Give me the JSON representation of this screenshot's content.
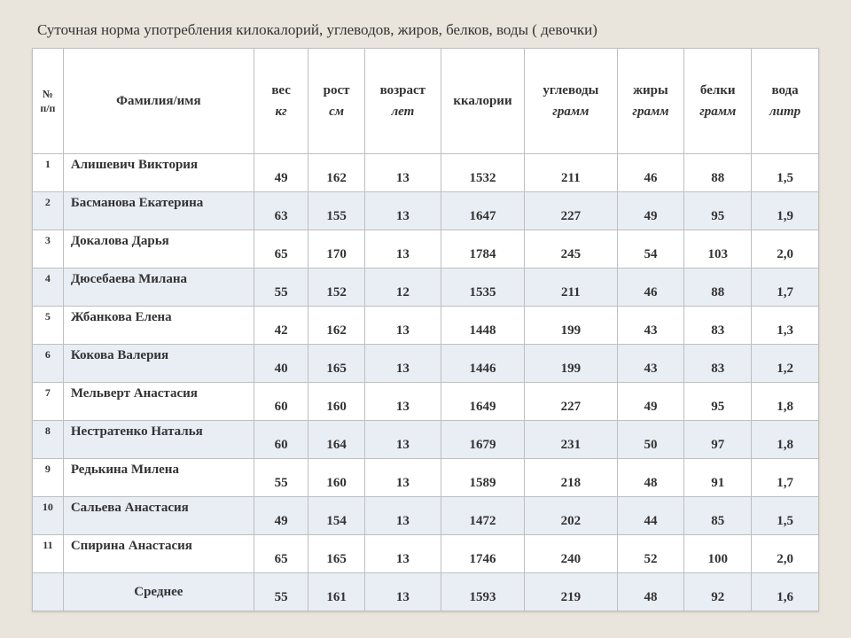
{
  "title": "Суточная норма употребления килокалорий, углеводов, жиров, белков, воды ( девочки)",
  "table": {
    "type": "table",
    "colors": {
      "page_bg": "#e9e5dc",
      "row_even_bg": "#e9edf4",
      "row_odd_bg": "#ffffff",
      "border": "#bfbfbf",
      "text": "#333333"
    },
    "columns": [
      {
        "key": "num",
        "label": "№ п/п",
        "unit": ""
      },
      {
        "key": "name",
        "label": "Фамилия/имя",
        "unit": ""
      },
      {
        "key": "weight",
        "label": "вес",
        "unit": "кг"
      },
      {
        "key": "height",
        "label": "рост",
        "unit": "см"
      },
      {
        "key": "age",
        "label": "возраст",
        "unit": "лет"
      },
      {
        "key": "kcal",
        "label": "ккалории",
        "unit": ""
      },
      {
        "key": "carb",
        "label": "углеводы",
        "unit": "грамм"
      },
      {
        "key": "fat",
        "label": "жиры",
        "unit": "грамм"
      },
      {
        "key": "prot",
        "label": "белки",
        "unit": "грамм"
      },
      {
        "key": "water",
        "label": "вода",
        "unit": "литр"
      }
    ],
    "rows": [
      {
        "num": "1",
        "name": "Алишевич Виктория",
        "weight": "49",
        "height": "162",
        "age": "13",
        "kcal": "1532",
        "carb": "211",
        "fat": "46",
        "prot": "88",
        "water": "1,5"
      },
      {
        "num": "2",
        "name": "Басманова Екатерина",
        "weight": "63",
        "height": "155",
        "age": "13",
        "kcal": "1647",
        "carb": "227",
        "fat": "49",
        "prot": "95",
        "water": "1,9"
      },
      {
        "num": "3",
        "name": "Докалова Дарья",
        "weight": "65",
        "height": "170",
        "age": "13",
        "kcal": "1784",
        "carb": "245",
        "fat": "54",
        "prot": "103",
        "water": "2,0"
      },
      {
        "num": "4",
        "name": "Дюсебаева Милана",
        "weight": "55",
        "height": "152",
        "age": "12",
        "kcal": "1535",
        "carb": "211",
        "fat": "46",
        "prot": "88",
        "water": "1,7"
      },
      {
        "num": "5",
        "name": "Жбанкова Елена",
        "weight": "42",
        "height": "162",
        "age": "13",
        "kcal": "1448",
        "carb": "199",
        "fat": "43",
        "prot": "83",
        "water": "1,3"
      },
      {
        "num": "6",
        "name": "Кокова Валерия",
        "weight": "40",
        "height": "165",
        "age": "13",
        "kcal": "1446",
        "carb": "199",
        "fat": "43",
        "prot": "83",
        "water": "1,2"
      },
      {
        "num": "7",
        "name": "Мельверт Анастасия",
        "weight": "60",
        "height": "160",
        "age": "13",
        "kcal": "1649",
        "carb": "227",
        "fat": "49",
        "prot": "95",
        "water": "1,8"
      },
      {
        "num": "8",
        "name": "Нестратенко Наталья",
        "weight": "60",
        "height": "164",
        "age": "13",
        "kcal": "1679",
        "carb": "231",
        "fat": "50",
        "prot": "97",
        "water": "1,8"
      },
      {
        "num": "9",
        "name": "Редькина Милена",
        "weight": "55",
        "height": "160",
        "age": "13",
        "kcal": "1589",
        "carb": "218",
        "fat": "48",
        "prot": "91",
        "water": "1,7"
      },
      {
        "num": "10",
        "name": "Сальева Анастасия",
        "weight": "49",
        "height": "154",
        "age": "13",
        "kcal": "1472",
        "carb": "202",
        "fat": "44",
        "prot": "85",
        "water": "1,5"
      },
      {
        "num": "11",
        "name": "Спирина Анастасия",
        "weight": "65",
        "height": "165",
        "age": "13",
        "kcal": "1746",
        "carb": "240",
        "fat": "52",
        "prot": "100",
        "water": "2,0"
      }
    ],
    "average": {
      "num": "",
      "name": "Среднее",
      "weight": "55",
      "height": "161",
      "age": "13",
      "kcal": "1593",
      "carb": "219",
      "fat": "48",
      "prot": "92",
      "water": "1,6"
    }
  }
}
